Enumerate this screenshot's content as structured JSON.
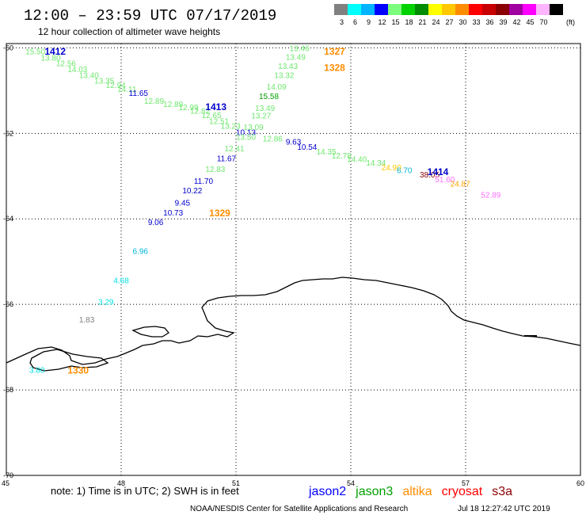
{
  "header": {
    "title": "12:00 – 23:59 UTC 07/17/2019",
    "subtitle": "12 hour collection of altimeter wave heights"
  },
  "colorbar": {
    "unit_label": "(ft)",
    "bins": [
      {
        "label": "3",
        "color": "#808080"
      },
      {
        "label": "6",
        "color": "#00ffff"
      },
      {
        "label": "9",
        "color": "#00b4ff"
      },
      {
        "label": "12",
        "color": "#0000ff"
      },
      {
        "label": "15",
        "color": "#7cfc7c"
      },
      {
        "label": "18",
        "color": "#00d200"
      },
      {
        "label": "21",
        "color": "#008c00"
      },
      {
        "label": "24",
        "color": "#ffff00"
      },
      {
        "label": "27",
        "color": "#ffc800"
      },
      {
        "label": "30",
        "color": "#ff8c00"
      },
      {
        "label": "33",
        "color": "#ff0000"
      },
      {
        "label": "36",
        "color": "#c80000"
      },
      {
        "label": "39",
        "color": "#8b0000"
      },
      {
        "label": "42",
        "color": "#a000a0"
      },
      {
        "label": "45",
        "color": "#ff00ff"
      },
      {
        "label": "70",
        "color": "#ffb4ff"
      },
      {
        "label": "",
        "color": "#000000"
      }
    ]
  },
  "footer": {
    "note": "note: 1) Time is in UTC; 2) SWH is in feet",
    "credit": "NOAA/NESDIS Center for Satellite Applications and Research",
    "timestamp": "Jul 18 12:27:42 UTC 2019",
    "satellites": [
      {
        "name": "jason2",
        "color": "#0000ff"
      },
      {
        "name": "jason3",
        "color": "#00a000"
      },
      {
        "name": "altika",
        "color": "#ff8c00"
      },
      {
        "name": "cryosat",
        "color": "#ff0000"
      },
      {
        "name": "s3a",
        "color": "#8b0000"
      }
    ]
  },
  "chart_data": {
    "type": "scatter",
    "title": "12:00 – 23:59 UTC 07/17/2019",
    "subtitle": "12 hour collection of altimeter wave heights",
    "xlim": [
      45,
      60
    ],
    "ylim": [
      -70,
      -59.9
    ],
    "x_ticks": [
      "45",
      "48",
      "51",
      "54",
      "57",
      "60"
    ],
    "y_ticks": [
      "-60",
      "-62",
      "-64",
      "-66",
      "-68",
      "-70"
    ],
    "grid": true,
    "points": [
      {
        "x": 45.5,
        "y": -60.08,
        "v": "15.50",
        "color": "#6ee86e"
      },
      {
        "x": 45.9,
        "y": -60.22,
        "v": "13.80",
        "color": "#6ee86e"
      },
      {
        "x": 46.3,
        "y": -60.35,
        "v": "12.56",
        "color": "#6ee86e"
      },
      {
        "x": 46.6,
        "y": -60.49,
        "v": "14.03",
        "color": "#6ee86e"
      },
      {
        "x": 46.9,
        "y": -60.63,
        "v": "13.40",
        "color": "#6ee86e"
      },
      {
        "x": 47.3,
        "y": -60.76,
        "v": "13.35",
        "color": "#6ee86e"
      },
      {
        "x": 47.6,
        "y": -60.86,
        "v": "12.94",
        "color": "#6ee86e"
      },
      {
        "x": 47.9,
        "y": -60.96,
        "v": "14.11",
        "color": "#6ee86e"
      },
      {
        "x": 48.2,
        "y": -61.05,
        "v": "11.65",
        "color": "#0000cc"
      },
      {
        "x": 48.6,
        "y": -61.23,
        "v": "12.89",
        "color": "#6ee86e"
      },
      {
        "x": 49.1,
        "y": -61.31,
        "v": "12.89",
        "color": "#6ee86e"
      },
      {
        "x": 49.5,
        "y": -61.38,
        "v": "12.99",
        "color": "#6ee86e"
      },
      {
        "x": 49.8,
        "y": -61.47,
        "v": "12.82",
        "color": "#6ee86e"
      },
      {
        "x": 50.1,
        "y": -61.57,
        "v": "12.65",
        "color": "#6ee86e"
      },
      {
        "x": 50.3,
        "y": -61.71,
        "v": "12.51",
        "color": "#6ee86e"
      },
      {
        "x": 50.6,
        "y": -61.82,
        "v": "13.23",
        "color": "#6ee86e"
      },
      {
        "x": 51.0,
        "y": -61.97,
        "v": "10.13",
        "color": "#0000cc"
      },
      {
        "x": 51.7,
        "y": -62.11,
        "v": "12.86",
        "color": "#6ee86e"
      },
      {
        "x": 52.3,
        "y": -62.19,
        "v": "9.63",
        "color": "#0000cc"
      },
      {
        "x": 52.6,
        "y": -62.31,
        "v": "10.54",
        "color": "#0000cc"
      },
      {
        "x": 53.1,
        "y": -62.42,
        "v": "14.35",
        "color": "#6ee86e"
      },
      {
        "x": 53.5,
        "y": -62.51,
        "v": "12.78",
        "color": "#6ee86e"
      },
      {
        "x": 53.9,
        "y": -62.6,
        "v": "14.40",
        "color": "#6ee86e"
      },
      {
        "x": 54.4,
        "y": -62.68,
        "v": "14.34",
        "color": "#6ee86e"
      },
      {
        "x": 54.8,
        "y": -62.79,
        "v": "24.90",
        "color": "#ffc800"
      },
      {
        "x": 55.2,
        "y": -62.86,
        "v": "6.70",
        "color": "#00b4dc"
      },
      {
        "x": 55.8,
        "y": -62.96,
        "v": "38.05",
        "color": "#8b0000"
      },
      {
        "x": 56.2,
        "y": -63.07,
        "v": "51.60",
        "color": "#ff70ff"
      },
      {
        "x": 56.6,
        "y": -63.17,
        "v": "24.87",
        "color": "#ffa000"
      },
      {
        "x": 57.4,
        "y": -63.43,
        "v": "52.89",
        "color": "#ff70ff"
      },
      {
        "x": 52.4,
        "y": -60.0,
        "v": "13.46",
        "color": "#6ee86e"
      },
      {
        "x": 52.3,
        "y": -60.21,
        "v": "13.49",
        "color": "#6ee86e"
      },
      {
        "x": 52.1,
        "y": -60.42,
        "v": "13.43",
        "color": "#6ee86e"
      },
      {
        "x": 52.0,
        "y": -60.63,
        "v": "13.32",
        "color": "#6ee86e"
      },
      {
        "x": 51.8,
        "y": -60.9,
        "v": "14.09",
        "color": "#6ee86e"
      },
      {
        "x": 51.6,
        "y": -61.12,
        "v": "15.58",
        "color": "#00a000"
      },
      {
        "x": 51.5,
        "y": -61.4,
        "v": "13.49",
        "color": "#6ee86e"
      },
      {
        "x": 51.4,
        "y": -61.58,
        "v": "13.27",
        "color": "#6ee86e"
      },
      {
        "x": 51.2,
        "y": -61.85,
        "v": "13.09",
        "color": "#6ee86e"
      },
      {
        "x": 51.0,
        "y": -62.08,
        "v": "13.50",
        "color": "#6ee86e"
      },
      {
        "x": 50.7,
        "y": -62.35,
        "v": "12.41",
        "color": "#6ee86e"
      },
      {
        "x": 50.5,
        "y": -62.58,
        "v": "11.67",
        "color": "#0000cc"
      },
      {
        "x": 50.2,
        "y": -62.83,
        "v": "12.83",
        "color": "#6ee86e"
      },
      {
        "x": 49.9,
        "y": -63.11,
        "v": "11.70",
        "color": "#0000cc"
      },
      {
        "x": 49.6,
        "y": -63.33,
        "v": "10.22",
        "color": "#0000cc"
      },
      {
        "x": 49.4,
        "y": -63.62,
        "v": "9.45",
        "color": "#0000cc"
      },
      {
        "x": 49.1,
        "y": -63.85,
        "v": "10.73",
        "color": "#0000cc"
      },
      {
        "x": 48.7,
        "y": -64.07,
        "v": "9.06",
        "color": "#0000cc"
      },
      {
        "x": 48.3,
        "y": -64.75,
        "v": "6.96",
        "color": "#00b4dc"
      },
      {
        "x": 47.8,
        "y": -65.43,
        "v": "4.68",
        "color": "#00e0e0"
      },
      {
        "x": 47.4,
        "y": -65.93,
        "v": "3.29",
        "color": "#00e0e0"
      },
      {
        "x": 46.9,
        "y": -66.35,
        "v": "1.83",
        "color": "#808080"
      },
      {
        "x": 45.6,
        "y": -67.53,
        "v": "3.80",
        "color": "#00e0e0"
      }
    ],
    "passes": [
      {
        "x": 46.0,
        "y": -60.07,
        "label": "1412",
        "color": "#0000cc"
      },
      {
        "x": 50.2,
        "y": -61.36,
        "label": "1413",
        "color": "#0000cc"
      },
      {
        "x": 56.0,
        "y": -62.88,
        "label": "1414",
        "color": "#0000cc"
      },
      {
        "x": 53.3,
        "y": -60.07,
        "label": "1327",
        "color": "#ff8c00"
      },
      {
        "x": 53.3,
        "y": -60.45,
        "label": "1328",
        "color": "#ff8c00"
      },
      {
        "x": 50.3,
        "y": -63.85,
        "label": "1329",
        "color": "#ff8c00"
      },
      {
        "x": 46.6,
        "y": -67.53,
        "label": "1330",
        "color": "#ff8c00"
      }
    ]
  }
}
